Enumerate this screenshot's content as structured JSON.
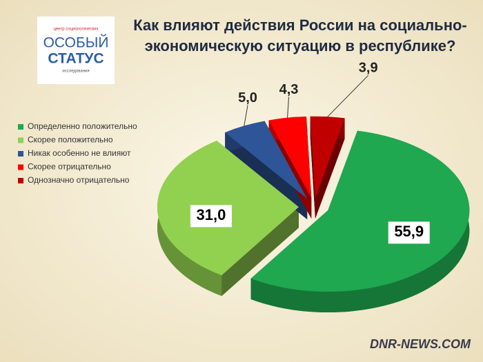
{
  "logo": {
    "top": "центр социологических",
    "line1": "ОСОБЫЙ",
    "line2": "СТАТУС",
    "bottom": "исследования"
  },
  "watermark": "DNR-NEWS.COM",
  "chart_data": {
    "type": "pie",
    "title": "Как влияют действия России на социально-экономическую ситуацию в республике?",
    "categories": [
      "Определенно положительно",
      "Скорее положительно",
      "Никак особенно не влияют",
      "Скорее отрицательно",
      "Однозначно отрицательно"
    ],
    "values": [
      55.9,
      31.0,
      5.0,
      4.3,
      3.9
    ],
    "value_labels": [
      "55,9",
      "31,0",
      "5,0",
      "4,3",
      "3,9"
    ],
    "colors": [
      "#1fa84f",
      "#92d050",
      "#2e5597",
      "#ff0000",
      "#c00000"
    ],
    "legend": "left"
  }
}
